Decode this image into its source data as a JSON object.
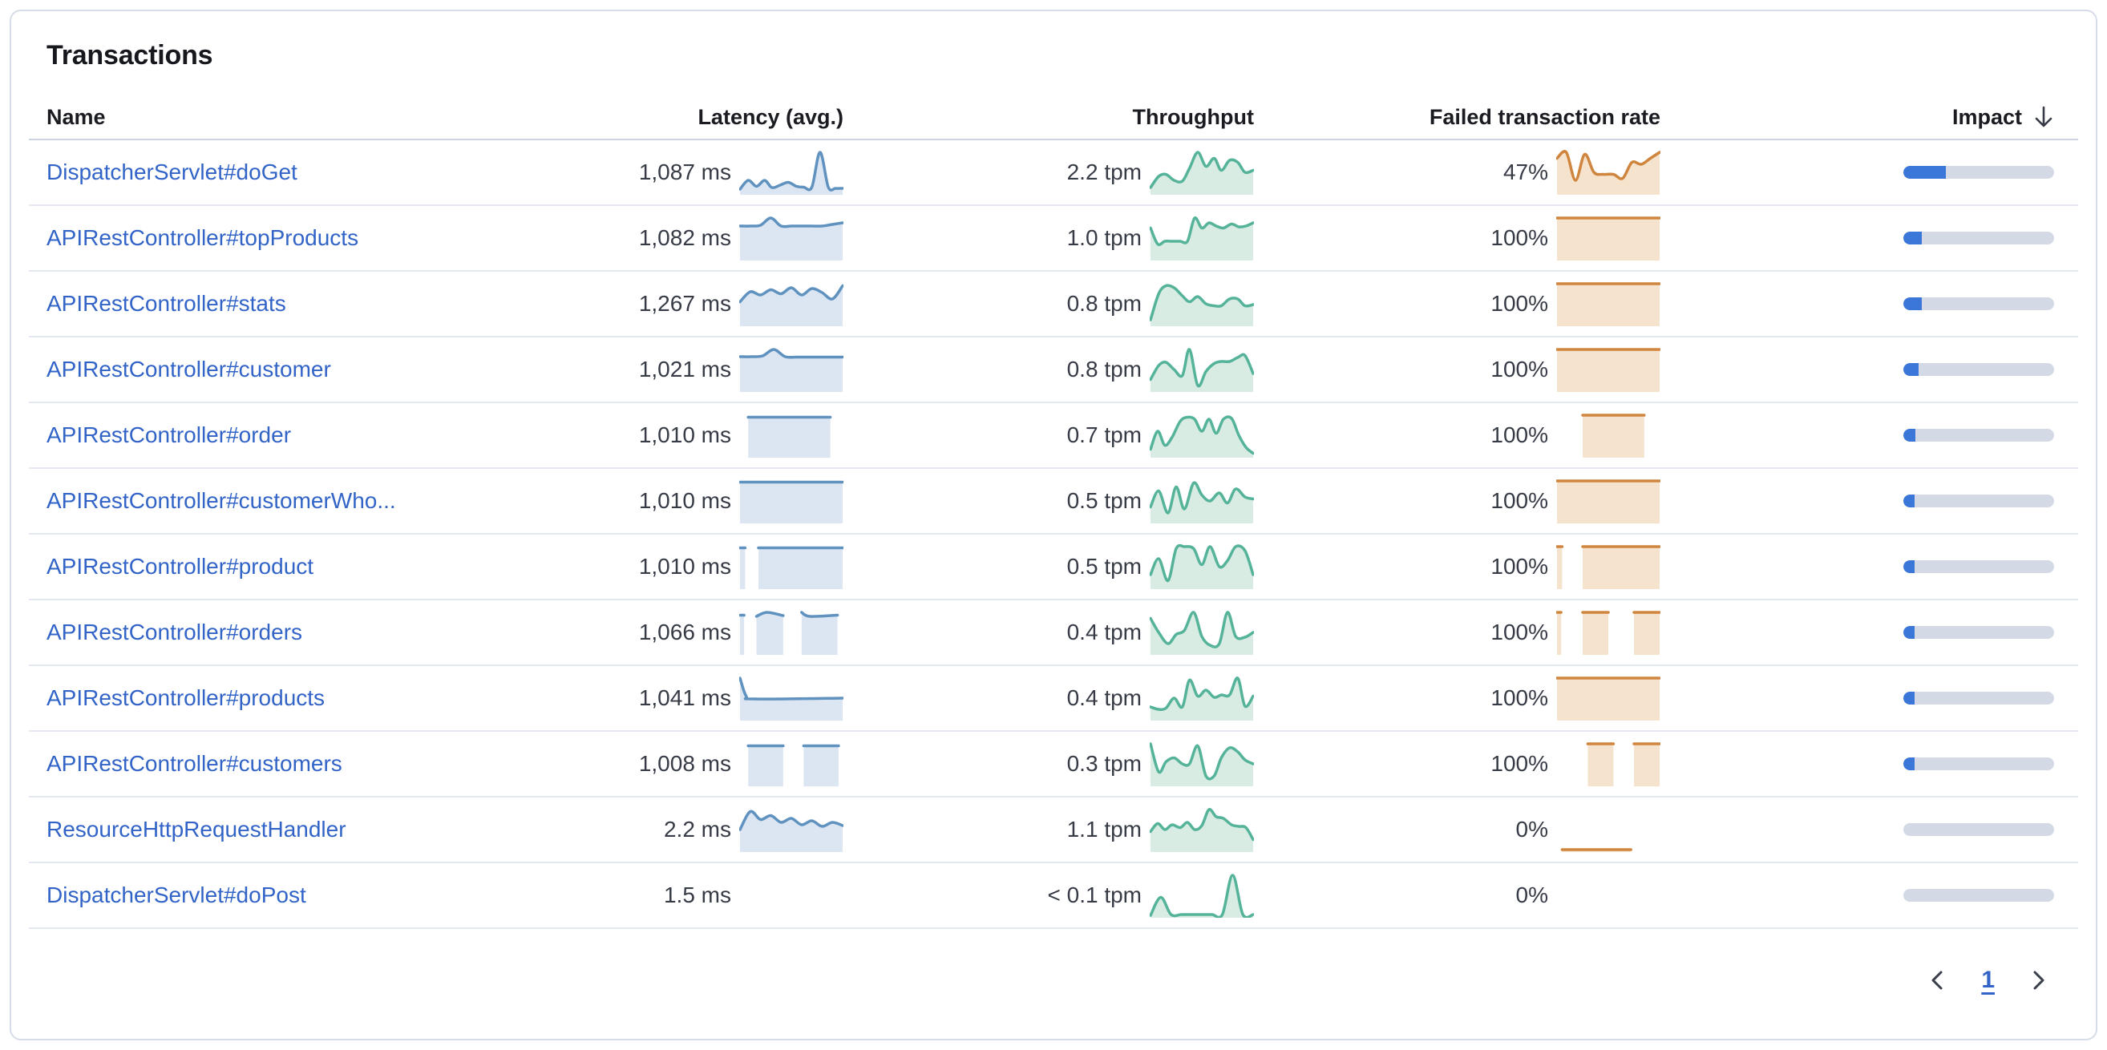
{
  "card": {
    "title": "Transactions"
  },
  "colors": {
    "link_blue": "#3264c8",
    "latency_line": "#6092c0",
    "latency_fill": "#dbe6f2",
    "throughput_line": "#54b399",
    "throughput_fill": "#d9ece3",
    "failed_line": "#d0853e",
    "failed_fill": "#f5e3ce",
    "impact_fill": "#3b77d8",
    "impact_track": "#d3dae6",
    "separator": "#e3e8f2",
    "header_separator": "#ccd4e2",
    "text_dark": "#363b45"
  },
  "table": {
    "columns": [
      {
        "id": "name",
        "label": "Name",
        "align": "left"
      },
      {
        "id": "latency",
        "label": "Latency (avg.)",
        "align": "right"
      },
      {
        "id": "throughput",
        "label": "Throughput",
        "align": "right"
      },
      {
        "id": "failed",
        "label": "Failed transaction rate",
        "align": "right"
      },
      {
        "id": "impact",
        "label": "Impact",
        "align": "right",
        "sorted": "desc",
        "sort_icon": "arrow-down-icon"
      }
    ],
    "rows": [
      {
        "name": "DispatcherServlet#doGet",
        "latency": "1,087 ms",
        "throughput": "2.2 tpm",
        "failed_rate": "47%",
        "impact_pct": 28,
        "latency_spark": [
          {
            "x": [
              0,
              0.08,
              0.16,
              0.24,
              0.31,
              0.39,
              0.47,
              0.55,
              0.62,
              0.7,
              0.78,
              0.86,
              0.93,
              1
            ],
            "y": [
              0.08,
              0.3,
              0.15,
              0.3,
              0.12,
              0.18,
              0.25,
              0.15,
              0.13,
              0.13,
              1.0,
              0.13,
              0.1,
              0.1
            ]
          }
        ],
        "throughput_spark": [
          {
            "x": [
              0,
              0.08,
              0.15,
              0.23,
              0.31,
              0.38,
              0.46,
              0.54,
              0.62,
              0.69,
              0.77,
              0.85,
              0.92,
              1
            ],
            "y": [
              0.12,
              0.4,
              0.45,
              0.3,
              0.28,
              0.6,
              1.0,
              0.65,
              0.85,
              0.55,
              0.8,
              0.75,
              0.5,
              0.55
            ]
          }
        ],
        "failed_spark": [
          {
            "x": [
              0,
              0.09,
              0.18,
              0.27,
              0.36,
              0.45,
              0.55,
              0.64,
              0.73,
              0.82,
              0.91,
              1
            ],
            "y": [
              0.85,
              1.0,
              0.3,
              0.95,
              0.5,
              0.45,
              0.45,
              0.35,
              0.75,
              0.7,
              0.85,
              1.0
            ]
          }
        ]
      },
      {
        "name": "APIRestController#topProducts",
        "latency": "1,082 ms",
        "throughput": "1.0 tpm",
        "failed_rate": "100%",
        "impact_pct": 12,
        "latency_spark": [
          {
            "x": [
              0,
              0.1,
              0.2,
              0.3,
              0.4,
              0.5,
              0.6,
              0.7,
              0.8,
              0.9,
              1
            ],
            "y": [
              0.8,
              0.8,
              0.82,
              1.0,
              0.8,
              0.8,
              0.8,
              0.8,
              0.8,
              0.84,
              0.88
            ]
          }
        ],
        "throughput_spark": [
          {
            "x": [
              0,
              0.07,
              0.14,
              0.21,
              0.29,
              0.36,
              0.43,
              0.5,
              0.57,
              0.64,
              0.71,
              0.79,
              0.86,
              0.93,
              1
            ],
            "y": [
              0.75,
              0.35,
              0.42,
              0.42,
              0.42,
              0.42,
              1.0,
              0.75,
              0.88,
              0.8,
              0.75,
              0.85,
              0.78,
              0.8,
              0.88
            ]
          }
        ],
        "failed_spark": [
          {
            "x": [
              0,
              1
            ],
            "y": [
              1,
              1
            ]
          }
        ]
      },
      {
        "name": "APIRestController#stats",
        "latency": "1,267 ms",
        "throughput": "0.8 tpm",
        "failed_rate": "100%",
        "impact_pct": 12,
        "latency_spark": [
          {
            "x": [
              0,
              0.1,
              0.2,
              0.3,
              0.4,
              0.5,
              0.6,
              0.7,
              0.8,
              0.9,
              1
            ],
            "y": [
              0.55,
              0.8,
              0.72,
              0.85,
              0.75,
              0.9,
              0.72,
              0.88,
              0.78,
              0.62,
              0.95
            ]
          }
        ],
        "throughput_spark": [
          {
            "x": [
              0,
              0.08,
              0.15,
              0.23,
              0.31,
              0.38,
              0.46,
              0.54,
              0.62,
              0.69,
              0.77,
              0.85,
              0.92,
              1
            ],
            "y": [
              0.1,
              0.75,
              0.95,
              0.9,
              0.7,
              0.55,
              0.68,
              0.5,
              0.45,
              0.45,
              0.62,
              0.62,
              0.45,
              0.48
            ]
          }
        ],
        "failed_spark": [
          {
            "x": [
              0,
              1
            ],
            "y": [
              1,
              1
            ]
          }
        ]
      },
      {
        "name": "APIRestController#customer",
        "latency": "1,021 ms",
        "throughput": "0.8 tpm",
        "failed_rate": "100%",
        "impact_pct": 10,
        "latency_spark": [
          {
            "x": [
              0,
              0.11,
              0.22,
              0.33,
              0.44,
              0.56,
              0.67,
              0.78,
              0.89,
              1
            ],
            "y": [
              0.82,
              0.82,
              0.84,
              1.0,
              0.82,
              0.81,
              0.81,
              0.81,
              0.81,
              0.81
            ]
          }
        ],
        "throughput_spark": [
          {
            "x": [
              0,
              0.08,
              0.15,
              0.23,
              0.31,
              0.38,
              0.46,
              0.54,
              0.62,
              0.69,
              0.77,
              0.85,
              0.92,
              1
            ],
            "y": [
              0.25,
              0.6,
              0.68,
              0.5,
              0.35,
              1.0,
              0.1,
              0.45,
              0.65,
              0.7,
              0.7,
              0.8,
              0.85,
              0.4
            ]
          }
        ],
        "failed_spark": [
          {
            "x": [
              0,
              1
            ],
            "y": [
              1,
              1
            ]
          }
        ]
      },
      {
        "name": "APIRestController#order",
        "latency": "1,010 ms",
        "throughput": "0.7 tpm",
        "failed_rate": "100%",
        "impact_pct": 8,
        "latency_spark": [
          {
            "x": [
              0.08,
              0.88
            ],
            "y": [
              0.95,
              0.95
            ]
          }
        ],
        "throughput_spark": [
          {
            "x": [
              0,
              0.07,
              0.14,
              0.21,
              0.29,
              0.36,
              0.43,
              0.5,
              0.57,
              0.64,
              0.71,
              0.79,
              0.86,
              0.93,
              1
            ],
            "y": [
              0.15,
              0.6,
              0.25,
              0.45,
              0.85,
              0.95,
              0.9,
              0.6,
              0.9,
              0.55,
              0.9,
              0.92,
              0.5,
              0.2,
              0.05
            ]
          }
        ],
        "failed_spark": [
          {
            "x": [
              0.25,
              0.85
            ],
            "y": [
              1,
              1
            ]
          }
        ]
      },
      {
        "name": "APIRestController#customerWho...",
        "latency": "1,010 ms",
        "throughput": "0.5 tpm",
        "failed_rate": "100%",
        "impact_pct": 7,
        "latency_spark": [
          {
            "x": [
              0,
              1
            ],
            "y": [
              0.97,
              0.97
            ]
          }
        ],
        "throughput_spark": [
          {
            "x": [
              0,
              0.08,
              0.17,
              0.25,
              0.33,
              0.42,
              0.5,
              0.58,
              0.67,
              0.75,
              0.83,
              0.92,
              1
            ],
            "y": [
              0.35,
              0.75,
              0.2,
              0.85,
              0.3,
              0.95,
              0.65,
              0.5,
              0.7,
              0.45,
              0.8,
              0.6,
              0.55
            ]
          }
        ],
        "failed_spark": [
          {
            "x": [
              0,
              1
            ],
            "y": [
              1,
              1
            ]
          }
        ]
      },
      {
        "name": "APIRestController#product",
        "latency": "1,010 ms",
        "throughput": "0.5 tpm",
        "failed_rate": "100%",
        "impact_pct": 6,
        "latency_spark": [
          {
            "x": [
              0,
              0.05
            ],
            "y": [
              0.97,
              0.97
            ]
          },
          {
            "x": [
              0.18,
              1
            ],
            "y": [
              0.97,
              0.97
            ]
          }
        ],
        "throughput_spark": [
          {
            "x": [
              0,
              0.08,
              0.17,
              0.25,
              0.33,
              0.42,
              0.5,
              0.58,
              0.67,
              0.75,
              0.83,
              0.92,
              1
            ],
            "y": [
              0.3,
              0.7,
              0.15,
              0.95,
              1.0,
              0.95,
              0.55,
              1.0,
              0.5,
              0.65,
              1.0,
              0.9,
              0.3
            ]
          }
        ],
        "failed_spark": [
          {
            "x": [
              0,
              0.05
            ],
            "y": [
              1,
              1
            ]
          },
          {
            "x": [
              0.25,
              1
            ],
            "y": [
              1,
              1
            ]
          }
        ]
      },
      {
        "name": "APIRestController#orders",
        "latency": "1,066 ms",
        "throughput": "0.4 tpm",
        "failed_rate": "100%",
        "impact_pct": 6,
        "latency_spark": [
          {
            "x": [
              0,
              0.04
            ],
            "y": [
              0.93,
              0.93
            ]
          },
          {
            "x": [
              0.16,
              0.26,
              0.42
            ],
            "y": [
              0.9,
              1.0,
              0.92
            ]
          },
          {
            "x": [
              0.6,
              0.68,
              0.95
            ],
            "y": [
              1.0,
              0.9,
              0.93
            ]
          }
        ],
        "throughput_spark": [
          {
            "x": [
              0,
              0.08,
              0.17,
              0.25,
              0.33,
              0.42,
              0.5,
              0.58,
              0.67,
              0.75,
              0.83,
              0.92,
              1
            ],
            "y": [
              0.85,
              0.5,
              0.22,
              0.45,
              0.55,
              1.0,
              0.4,
              0.18,
              0.22,
              1.0,
              0.4,
              0.38,
              0.5
            ]
          }
        ],
        "failed_spark": [
          {
            "x": [
              0,
              0.04
            ],
            "y": [
              1,
              1
            ]
          },
          {
            "x": [
              0.25,
              0.5
            ],
            "y": [
              1,
              1
            ]
          },
          {
            "x": [
              0.75,
              1
            ],
            "y": [
              1,
              1
            ]
          }
        ]
      },
      {
        "name": "APIRestController#products",
        "latency": "1,041 ms",
        "throughput": "0.4 tpm",
        "failed_rate": "100%",
        "impact_pct": 6,
        "latency_spark": [
          {
            "x": [
              0,
              0.06,
              0.14,
              1
            ],
            "y": [
              1.0,
              0.55,
              0.48,
              0.5
            ]
          }
        ],
        "throughput_spark": [
          {
            "x": [
              0,
              0.08,
              0.15,
              0.23,
              0.31,
              0.38,
              0.46,
              0.54,
              0.62,
              0.69,
              0.77,
              0.85,
              0.92,
              1
            ],
            "y": [
              0.28,
              0.22,
              0.25,
              0.5,
              0.28,
              0.95,
              0.55,
              0.7,
              0.52,
              0.58,
              0.58,
              1.0,
              0.3,
              0.55
            ]
          }
        ],
        "failed_spark": [
          {
            "x": [
              0,
              1
            ],
            "y": [
              1,
              1
            ]
          }
        ]
      },
      {
        "name": "APIRestController#customers",
        "latency": "1,008 ms",
        "throughput": "0.3 tpm",
        "failed_rate": "100%",
        "impact_pct": 4,
        "latency_spark": [
          {
            "x": [
              0.08,
              0.42
            ],
            "y": [
              0.95,
              0.95
            ]
          },
          {
            "x": [
              0.62,
              0.96
            ],
            "y": [
              0.95,
              0.95
            ]
          }
        ],
        "throughput_spark": [
          {
            "x": [
              0,
              0.08,
              0.15,
              0.23,
              0.31,
              0.38,
              0.46,
              0.54,
              0.62,
              0.69,
              0.77,
              0.85,
              0.92,
              1
            ],
            "y": [
              1.0,
              0.3,
              0.55,
              0.65,
              0.5,
              0.5,
              0.95,
              0.2,
              0.2,
              0.65,
              0.9,
              0.8,
              0.6,
              0.5
            ]
          }
        ],
        "failed_spark": [
          {
            "x": [
              0.3,
              0.55
            ],
            "y": [
              1,
              1
            ]
          },
          {
            "x": [
              0.75,
              1
            ],
            "y": [
              1,
              1
            ]
          }
        ]
      },
      {
        "name": "ResourceHttpRequestHandler",
        "latency": "2.2 ms",
        "throughput": "1.1 tpm",
        "failed_rate": "0%",
        "impact_pct": 0,
        "latency_spark": [
          {
            "x": [
              0,
              0.1,
              0.2,
              0.3,
              0.4,
              0.5,
              0.6,
              0.7,
              0.8,
              0.9,
              1
            ],
            "y": [
              0.5,
              0.95,
              0.75,
              0.85,
              0.68,
              0.78,
              0.62,
              0.72,
              0.58,
              0.68,
              0.6
            ]
          }
        ],
        "throughput_spark": [
          {
            "x": [
              0,
              0.07,
              0.14,
              0.21,
              0.29,
              0.36,
              0.43,
              0.5,
              0.57,
              0.64,
              0.71,
              0.79,
              0.86,
              0.93,
              1
            ],
            "y": [
              0.45,
              0.65,
              0.5,
              0.62,
              0.55,
              0.68,
              0.5,
              0.6,
              1.0,
              0.82,
              0.78,
              0.62,
              0.58,
              0.55,
              0.25
            ]
          }
        ],
        "failed_spark": [
          {
            "x": [
              0.05,
              0.72
            ],
            "y": [
              0,
              0
            ]
          }
        ]
      },
      {
        "name": "DispatcherServlet#doPost",
        "latency": "1.5 ms",
        "throughput": "< 0.1 tpm",
        "failed_rate": "0%",
        "impact_pct": 0,
        "latency_spark": [],
        "throughput_spark": [
          {
            "x": [
              0,
              0.1,
              0.2,
              0.3,
              0.4,
              0.5,
              0.6,
              0.7,
              0.8,
              0.9,
              1
            ],
            "y": [
              0.0,
              0.45,
              0.02,
              0.02,
              0.02,
              0.02,
              0.02,
              0.02,
              1.0,
              0.02,
              0.02
            ]
          }
        ],
        "failed_spark": []
      }
    ]
  },
  "pagination": {
    "page": "1",
    "prev_icon": "chevron-left-icon",
    "next_icon": "chevron-right-icon"
  }
}
